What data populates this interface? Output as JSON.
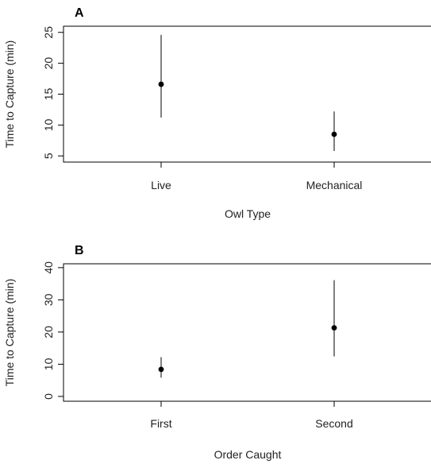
{
  "chart_data": [
    {
      "type": "scatter",
      "panel_label": "A",
      "categories": [
        "Live",
        "Mechanical"
      ],
      "points": [
        {
          "category": "Live",
          "y": 16.6,
          "lower": 11.2,
          "upper": 24.6
        },
        {
          "category": "Mechanical",
          "y": 8.5,
          "lower": 5.8,
          "upper": 12.2
        }
      ],
      "xlabel": "Owl Type",
      "ylabel": "Time to Capture (min)",
      "ylim": [
        4.0,
        26.0
      ],
      "yticks": [
        "5",
        "10",
        "15",
        "20",
        "25"
      ],
      "error_bars": true,
      "grid": false
    },
    {
      "type": "scatter",
      "panel_label": "B",
      "categories": [
        "First",
        "Second"
      ],
      "points": [
        {
          "category": "First",
          "y": 8.4,
          "lower": 5.8,
          "upper": 12.2
        },
        {
          "category": "Second",
          "y": 21.3,
          "lower": 12.4,
          "upper": 36.1
        }
      ],
      "xlabel": "Order Caught",
      "ylabel": "Time to Capture (min)",
      "ylim": [
        -1.5,
        41.2
      ],
      "yticks": [
        "0",
        "10",
        "20",
        "30",
        "40"
      ],
      "error_bars": true,
      "grid": false
    }
  ]
}
